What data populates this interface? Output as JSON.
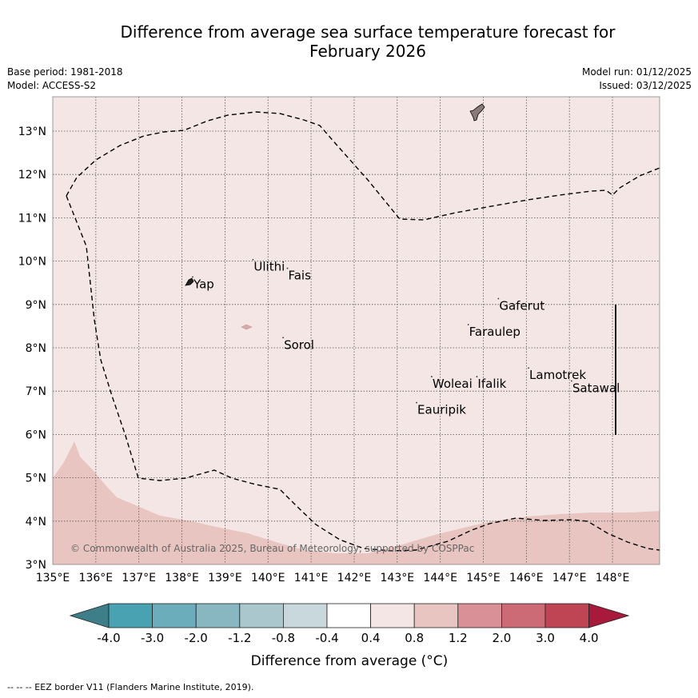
{
  "title_line1": "Difference from average sea surface temperature forecast for",
  "title_line2": "February 2026",
  "meta": {
    "base_period": "Base period: 1981-2018",
    "model": "Model: ACCESS-S2",
    "model_run": "Model run: 01/12/2025",
    "issued": "Issued: 03/12/2025"
  },
  "axes": {
    "lat_labels": [
      "13°N",
      "12°N",
      "11°N",
      "10°N",
      "9°N",
      "8°N",
      "7°N",
      "6°N",
      "5°N",
      "4°N",
      "3°N"
    ],
    "lon_labels": [
      "135°E",
      "136°E",
      "137°E",
      "138°E",
      "139°E",
      "140°E",
      "141°E",
      "142°E",
      "143°E",
      "144°E",
      "145°E",
      "146°E",
      "147°E",
      "148°E"
    ],
    "lon_range": [
      135,
      149
    ],
    "lat_range": [
      3,
      13.8
    ]
  },
  "places": [
    {
      "name": "Yap",
      "lon": 138.25,
      "lat": 9.45
    },
    {
      "name": "Ulithi",
      "lon": 139.65,
      "lat": 9.85
    },
    {
      "name": "Fais",
      "lon": 140.45,
      "lat": 9.65
    },
    {
      "name": "Sorol",
      "lon": 140.35,
      "lat": 8.05
    },
    {
      "name": "Gaferut",
      "lon": 145.35,
      "lat": 8.95
    },
    {
      "name": "Faraulep",
      "lon": 144.65,
      "lat": 8.35
    },
    {
      "name": "Woleai",
      "lon": 143.8,
      "lat": 7.15
    },
    {
      "name": "Ifalik",
      "lon": 144.85,
      "lat": 7.15
    },
    {
      "name": "Eauripik",
      "lon": 143.45,
      "lat": 6.55
    },
    {
      "name": "Lamotrek",
      "lon": 146.05,
      "lat": 7.35
    },
    {
      "name": "Satawal",
      "lon": 147.05,
      "lat": 7.05
    }
  ],
  "copyright": "© Commonwealth of Australia 2025, Bureau of Meteorology, supported by COSPPac",
  "colorbar": {
    "labels": [
      "-4.0",
      "-3.0",
      "-2.0",
      "-1.2",
      "-0.8",
      "-0.4",
      "0.4",
      "0.8",
      "1.2",
      "2.0",
      "3.0",
      "4.0"
    ],
    "colors": [
      "#3d7e88",
      "#48a2b2",
      "#6badbb",
      "#88b7c2",
      "#a9c7cd",
      "#c8d8dc",
      "#ffffff",
      "#f3e6e4",
      "#e8c5c1",
      "#d99097",
      "#cc6b75",
      "#bf4555",
      "#a71a3b"
    ],
    "label": "Difference from average (°C)"
  },
  "colors": {
    "map_background": "#f3e6e4",
    "warm_region": "#e8c5c1"
  },
  "footer": "--  --  -- EEZ border V11 (Flanders Marine Institute, 2019)."
}
